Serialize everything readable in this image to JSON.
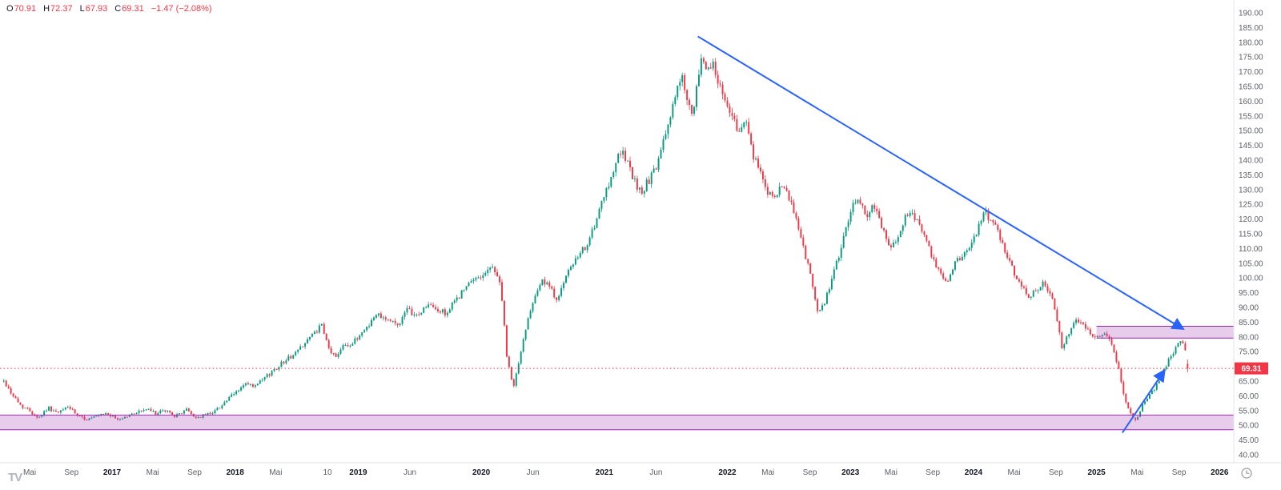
{
  "legend": {
    "open_label": "O",
    "open": "70.91",
    "high_label": "H",
    "high": "72.37",
    "low_label": "L",
    "low": "67.93",
    "close_label": "C",
    "close": "69.31",
    "change": "−1.47 (−2.08%)"
  },
  "price_axis": {
    "current_price_label": "69.31"
  },
  "branding": {
    "logo_text": "TV"
  },
  "colors": {
    "up": "#089981",
    "down": "#f23645",
    "trendline": "#2962ff",
    "zone_fill": "rgba(171,71,188,0.28)",
    "zone_border": "#9c27b0",
    "price_line": "#f23645",
    "axis_text": "#5d6069",
    "axis_text_major": "#131722",
    "axis_border": "#e0e3eb",
    "badge_text": "#ffffff",
    "icon_gray": "#9598a1"
  },
  "chart_data": {
    "type": "candlestick",
    "title": "",
    "xlabel": "",
    "ylabel": "",
    "ylim": [
      40,
      190
    ],
    "x_range": [
      2016.12,
      2025.74
    ],
    "candle_count": 500,
    "seed": 42,
    "current_price": 69.31,
    "last_candle": {
      "open": 70.91,
      "high": 72.37,
      "low": 67.93,
      "close": 69.31
    },
    "price_path_anchors": [
      [
        2016.12,
        65
      ],
      [
        2016.18,
        61
      ],
      [
        2016.25,
        57
      ],
      [
        2016.33,
        55
      ],
      [
        2016.4,
        52.5
      ],
      [
        2016.48,
        56
      ],
      [
        2016.56,
        54
      ],
      [
        2016.64,
        56.5
      ],
      [
        2016.72,
        53
      ],
      [
        2016.8,
        52
      ],
      [
        2016.88,
        53
      ],
      [
        2016.96,
        54
      ],
      [
        2017.04,
        52
      ],
      [
        2017.12,
        53
      ],
      [
        2017.2,
        54.5
      ],
      [
        2017.28,
        55.5
      ],
      [
        2017.36,
        54
      ],
      [
        2017.44,
        55
      ],
      [
        2017.52,
        53
      ],
      [
        2017.6,
        55.5
      ],
      [
        2017.68,
        52.5
      ],
      [
        2017.76,
        53.5
      ],
      [
        2017.84,
        55
      ],
      [
        2017.92,
        58
      ],
      [
        2018.0,
        61
      ],
      [
        2018.08,
        64
      ],
      [
        2018.16,
        63
      ],
      [
        2018.24,
        66
      ],
      [
        2018.32,
        69
      ],
      [
        2018.4,
        72
      ],
      [
        2018.48,
        74
      ],
      [
        2018.56,
        78
      ],
      [
        2018.64,
        81
      ],
      [
        2018.7,
        84
      ],
      [
        2018.76,
        76
      ],
      [
        2018.82,
        73
      ],
      [
        2018.88,
        78
      ],
      [
        2018.94,
        77
      ],
      [
        2019.0,
        80
      ],
      [
        2019.08,
        84
      ],
      [
        2019.16,
        88
      ],
      [
        2019.24,
        86
      ],
      [
        2019.32,
        84
      ],
      [
        2019.4,
        89
      ],
      [
        2019.48,
        87
      ],
      [
        2019.56,
        91
      ],
      [
        2019.64,
        89
      ],
      [
        2019.72,
        88
      ],
      [
        2019.8,
        93
      ],
      [
        2019.88,
        97
      ],
      [
        2019.96,
        100
      ],
      [
        2020.04,
        102
      ],
      [
        2020.1,
        104
      ],
      [
        2020.16,
        97
      ],
      [
        2020.21,
        72
      ],
      [
        2020.26,
        63
      ],
      [
        2020.31,
        72
      ],
      [
        2020.37,
        85
      ],
      [
        2020.43,
        94
      ],
      [
        2020.49,
        99
      ],
      [
        2020.55,
        97
      ],
      [
        2020.61,
        93
      ],
      [
        2020.67,
        98
      ],
      [
        2020.73,
        104
      ],
      [
        2020.79,
        107
      ],
      [
        2020.85,
        111
      ],
      [
        2020.91,
        116
      ],
      [
        2020.97,
        124
      ],
      [
        2021.03,
        131
      ],
      [
        2021.08,
        138
      ],
      [
        2021.13,
        143
      ],
      [
        2021.18,
        140
      ],
      [
        2021.24,
        133
      ],
      [
        2021.3,
        129
      ],
      [
        2021.36,
        133
      ],
      [
        2021.42,
        137
      ],
      [
        2021.48,
        146
      ],
      [
        2021.54,
        156
      ],
      [
        2021.59,
        164
      ],
      [
        2021.64,
        168
      ],
      [
        2021.68,
        159
      ],
      [
        2021.72,
        153
      ],
      [
        2021.76,
        168
      ],
      [
        2021.8,
        175
      ],
      [
        2021.84,
        170
      ],
      [
        2021.875,
        174
      ],
      [
        2021.92,
        167
      ],
      [
        2021.97,
        162
      ],
      [
        2022.02,
        157
      ],
      [
        2022.08,
        150
      ],
      [
        2022.14,
        154
      ],
      [
        2022.2,
        143
      ],
      [
        2022.26,
        136
      ],
      [
        2022.32,
        130
      ],
      [
        2022.38,
        126
      ],
      [
        2022.44,
        131
      ],
      [
        2022.5,
        127
      ],
      [
        2022.56,
        120
      ],
      [
        2022.62,
        110
      ],
      [
        2022.68,
        100
      ],
      [
        2022.74,
        87
      ],
      [
        2022.79,
        92
      ],
      [
        2022.84,
        98
      ],
      [
        2022.9,
        107
      ],
      [
        2022.96,
        116
      ],
      [
        2023.02,
        124
      ],
      [
        2023.07,
        127
      ],
      [
        2023.13,
        121
      ],
      [
        2023.19,
        125
      ],
      [
        2023.25,
        118
      ],
      [
        2023.31,
        110
      ],
      [
        2023.38,
        114
      ],
      [
        2023.44,
        120
      ],
      [
        2023.49,
        123
      ],
      [
        2023.55,
        119
      ],
      [
        2023.61,
        114
      ],
      [
        2023.67,
        106
      ],
      [
        2023.73,
        101
      ],
      [
        2023.79,
        99
      ],
      [
        2023.85,
        105
      ],
      [
        2023.91,
        108
      ],
      [
        2023.97,
        110
      ],
      [
        2024.03,
        116
      ],
      [
        2024.09,
        122
      ],
      [
        2024.15,
        120
      ],
      [
        2024.21,
        114
      ],
      [
        2024.27,
        108
      ],
      [
        2024.33,
        102
      ],
      [
        2024.39,
        98
      ],
      [
        2024.45,
        94
      ],
      [
        2024.51,
        96
      ],
      [
        2024.57,
        98
      ],
      [
        2024.63,
        95
      ],
      [
        2024.68,
        85
      ],
      [
        2024.72,
        76
      ],
      [
        2024.78,
        82
      ],
      [
        2024.84,
        86
      ],
      [
        2024.9,
        84
      ],
      [
        2024.96,
        81
      ],
      [
        2025.02,
        80
      ],
      [
        2025.07,
        82
      ],
      [
        2025.12,
        78
      ],
      [
        2025.17,
        71
      ],
      [
        2025.22,
        61
      ],
      [
        2025.27,
        54
      ],
      [
        2025.32,
        52
      ],
      [
        2025.37,
        56.5
      ],
      [
        2025.43,
        60
      ],
      [
        2025.49,
        64
      ],
      [
        2025.55,
        69
      ],
      [
        2025.6,
        73.5
      ],
      [
        2025.65,
        76.5
      ],
      [
        2025.69,
        78.5
      ],
      [
        2025.72,
        75
      ],
      [
        2025.74,
        70.5
      ]
    ],
    "zones": [
      {
        "id": "support-zone",
        "label": "support band",
        "t_start": null,
        "t_end": null,
        "price_top": 53.5,
        "price_bottom": 48.5
      },
      {
        "id": "resistance-zone",
        "label": "resistance band",
        "t_start": 2025.0,
        "t_end": null,
        "price_top": 83.6,
        "price_bottom": 79.6
      }
    ],
    "trendlines": [
      {
        "id": "downtrend-line",
        "from": [
          2021.76,
          182
        ],
        "to": [
          2025.7,
          82.8
        ],
        "arrow": true
      },
      {
        "id": "breakout-arrow",
        "from": [
          2025.21,
          47.5
        ],
        "to": [
          2025.55,
          68.5
        ],
        "arrow": true
      }
    ],
    "y_ticks": [
      "190.00",
      "185.00",
      "180.00",
      "175.00",
      "170.00",
      "165.00",
      "160.00",
      "155.00",
      "150.00",
      "145.00",
      "140.00",
      "135.00",
      "130.00",
      "125.00",
      "120.00",
      "115.00",
      "110.00",
      "105.00",
      "100.00",
      "95.00",
      "90.00",
      "85.00",
      "80.00",
      "75.00",
      "65.00",
      "60.00",
      "55.00",
      "50.00",
      "45.00",
      "40.00"
    ],
    "x_ticks": [
      {
        "label": "Mai",
        "t": 2016.33,
        "major": false
      },
      {
        "label": "Sep",
        "t": 2016.67,
        "major": false
      },
      {
        "label": "2017",
        "t": 2017.0,
        "major": true
      },
      {
        "label": "Mai",
        "t": 2017.33,
        "major": false
      },
      {
        "label": "Sep",
        "t": 2017.67,
        "major": false
      },
      {
        "label": "2018",
        "t": 2018.0,
        "major": true
      },
      {
        "label": "Mai",
        "t": 2018.33,
        "major": false
      },
      {
        "label": "10",
        "t": 2018.75,
        "major": false
      },
      {
        "label": "2019",
        "t": 2019.0,
        "major": true
      },
      {
        "label": "Jun",
        "t": 2019.42,
        "major": false
      },
      {
        "label": "2020",
        "t": 2020.0,
        "major": true
      },
      {
        "label": "Jun",
        "t": 2020.42,
        "major": false
      },
      {
        "label": "2021",
        "t": 2021.0,
        "major": true
      },
      {
        "label": "Jun",
        "t": 2021.42,
        "major": false
      },
      {
        "label": "2022",
        "t": 2022.0,
        "major": true
      },
      {
        "label": "Mai",
        "t": 2022.33,
        "major": false
      },
      {
        "label": "Sep",
        "t": 2022.67,
        "major": false
      },
      {
        "label": "2023",
        "t": 2023.0,
        "major": true
      },
      {
        "label": "Mai",
        "t": 2023.33,
        "major": false
      },
      {
        "label": "Sep",
        "t": 2023.67,
        "major": false
      },
      {
        "label": "2024",
        "t": 2024.0,
        "major": true
      },
      {
        "label": "Mai",
        "t": 2024.33,
        "major": false
      },
      {
        "label": "Sep",
        "t": 2024.67,
        "major": false
      },
      {
        "label": "2025",
        "t": 2025.0,
        "major": true
      },
      {
        "label": "Mai",
        "t": 2025.33,
        "major": false
      },
      {
        "label": "Sep",
        "t": 2025.67,
        "major": false
      },
      {
        "label": "2026",
        "t": 2026.0,
        "major": true
      }
    ]
  }
}
